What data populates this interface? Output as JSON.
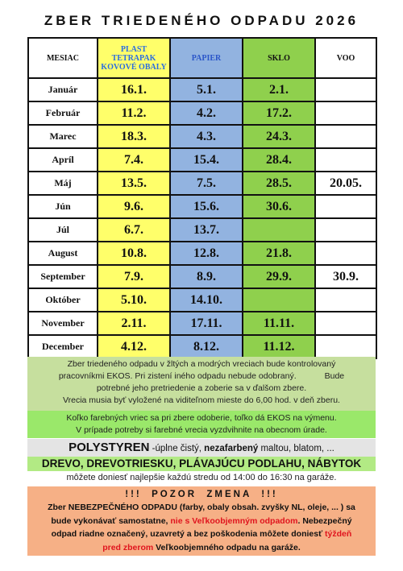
{
  "title": "ZBER TRIEDENÉHO ODPADU 2026",
  "headers": {
    "month": "MESIAC",
    "plast": "PLAST TETRAPAK KOVOVÉ OBALY",
    "papier": "PAPIER",
    "sklo": "SKLO",
    "voo": "VOO"
  },
  "rows": [
    {
      "month": "Január",
      "plast": "16.1.",
      "papier": "5.1.",
      "sklo": "2.1.",
      "voo": ""
    },
    {
      "month": "Február",
      "plast": "11.2.",
      "papier": "4.2.",
      "sklo": "17.2.",
      "voo": ""
    },
    {
      "month": "Marec",
      "plast": "18.3.",
      "papier": "4.3.",
      "sklo": "24.3.",
      "voo": ""
    },
    {
      "month": "Apríl",
      "plast": "7.4.",
      "papier": "15.4.",
      "sklo": "28.4.",
      "voo": ""
    },
    {
      "month": "Máj",
      "plast": "13.5.",
      "papier": "7.5.",
      "sklo": "28.5.",
      "voo": "20.05."
    },
    {
      "month": "Jún",
      "plast": "9.6.",
      "papier": "15.6.",
      "sklo": "30.6.",
      "voo": ""
    },
    {
      "month": "Júl",
      "plast": "6.7.",
      "papier": "13.7.",
      "sklo": "",
      "voo": ""
    },
    {
      "month": "August",
      "plast": "10.8.",
      "papier": "12.8.",
      "sklo": "21.8.",
      "voo": ""
    },
    {
      "month": "September",
      "plast": "7.9.",
      "papier": "8.9.",
      "sklo": "29.9.",
      "voo": "30.9."
    },
    {
      "month": "Október",
      "plast": "5.10.",
      "papier": "14.10.",
      "sklo": "",
      "voo": ""
    },
    {
      "month": "November",
      "plast": "2.11.",
      "papier": "17.11.",
      "sklo": "11.11.",
      "voo": ""
    },
    {
      "month": "December",
      "plast": "4.12.",
      "papier": "8.12.",
      "sklo": "11.12.",
      "voo": ""
    }
  ],
  "info1": {
    "line1": "Zber triedeného odpadu v žltých a modrých vreciach bude kontrolovaný",
    "line2": "pracovníkmi EKOS. Pri zistení iného odpadu nebude odobraný.            Bude",
    "line3": "potrebné jeho pretriedenie a zoberie sa v ďalšom zbere.",
    "line4": "Vrecia musia byť vyložené na viditeľnom mieste do 6,00 hod. v deň zberu."
  },
  "info2": {
    "line1": "Koľko farebných vriec sa pri zbere odoberie, toľko dá EKOS na výmenu.",
    "line2": "V prípade potreby si farebné vrecia vyzdvihnite na obecnom úrade."
  },
  "poly": {
    "main": "POLYSTYREN",
    "part1": " -úplne čistý, ",
    "bold": "nezafarbený",
    "part2": " maltou, blatom, ..."
  },
  "drevo": {
    "main": "DREVO, DREVOTRIESKU, PLÁVAJÚCU PODLAHU, NÁBYTOK",
    "sub": "môžete doniesť najlepšie každú stredu od 14:00 do 16:30 na garáže."
  },
  "warn": {
    "title": "!!!  POZOR  ZMENA  !!!",
    "p1": "Zber NEBEZPEČNÉHO ODPADU (farby, obaly obsah. zvyšky NL, oleje, ... ) sa",
    "p2a": "bude vykonávať samostatne, ",
    "p2red": "nie s Veľkoobjemným odpadom",
    "p2b": ". Nebezpečný",
    "p3a": "odpad riadne označený, uzavretý a bez poškodenia môžete doniesť ",
    "p3red": "týždeň",
    "p4red": "pred zberom",
    "p4b": " Veľkoobjemného odpadu na garáže."
  },
  "colors": {
    "plast": "#ffff6a",
    "papier": "#92b3e0",
    "sklo": "#8fd04d",
    "warning": "#f6b086"
  }
}
